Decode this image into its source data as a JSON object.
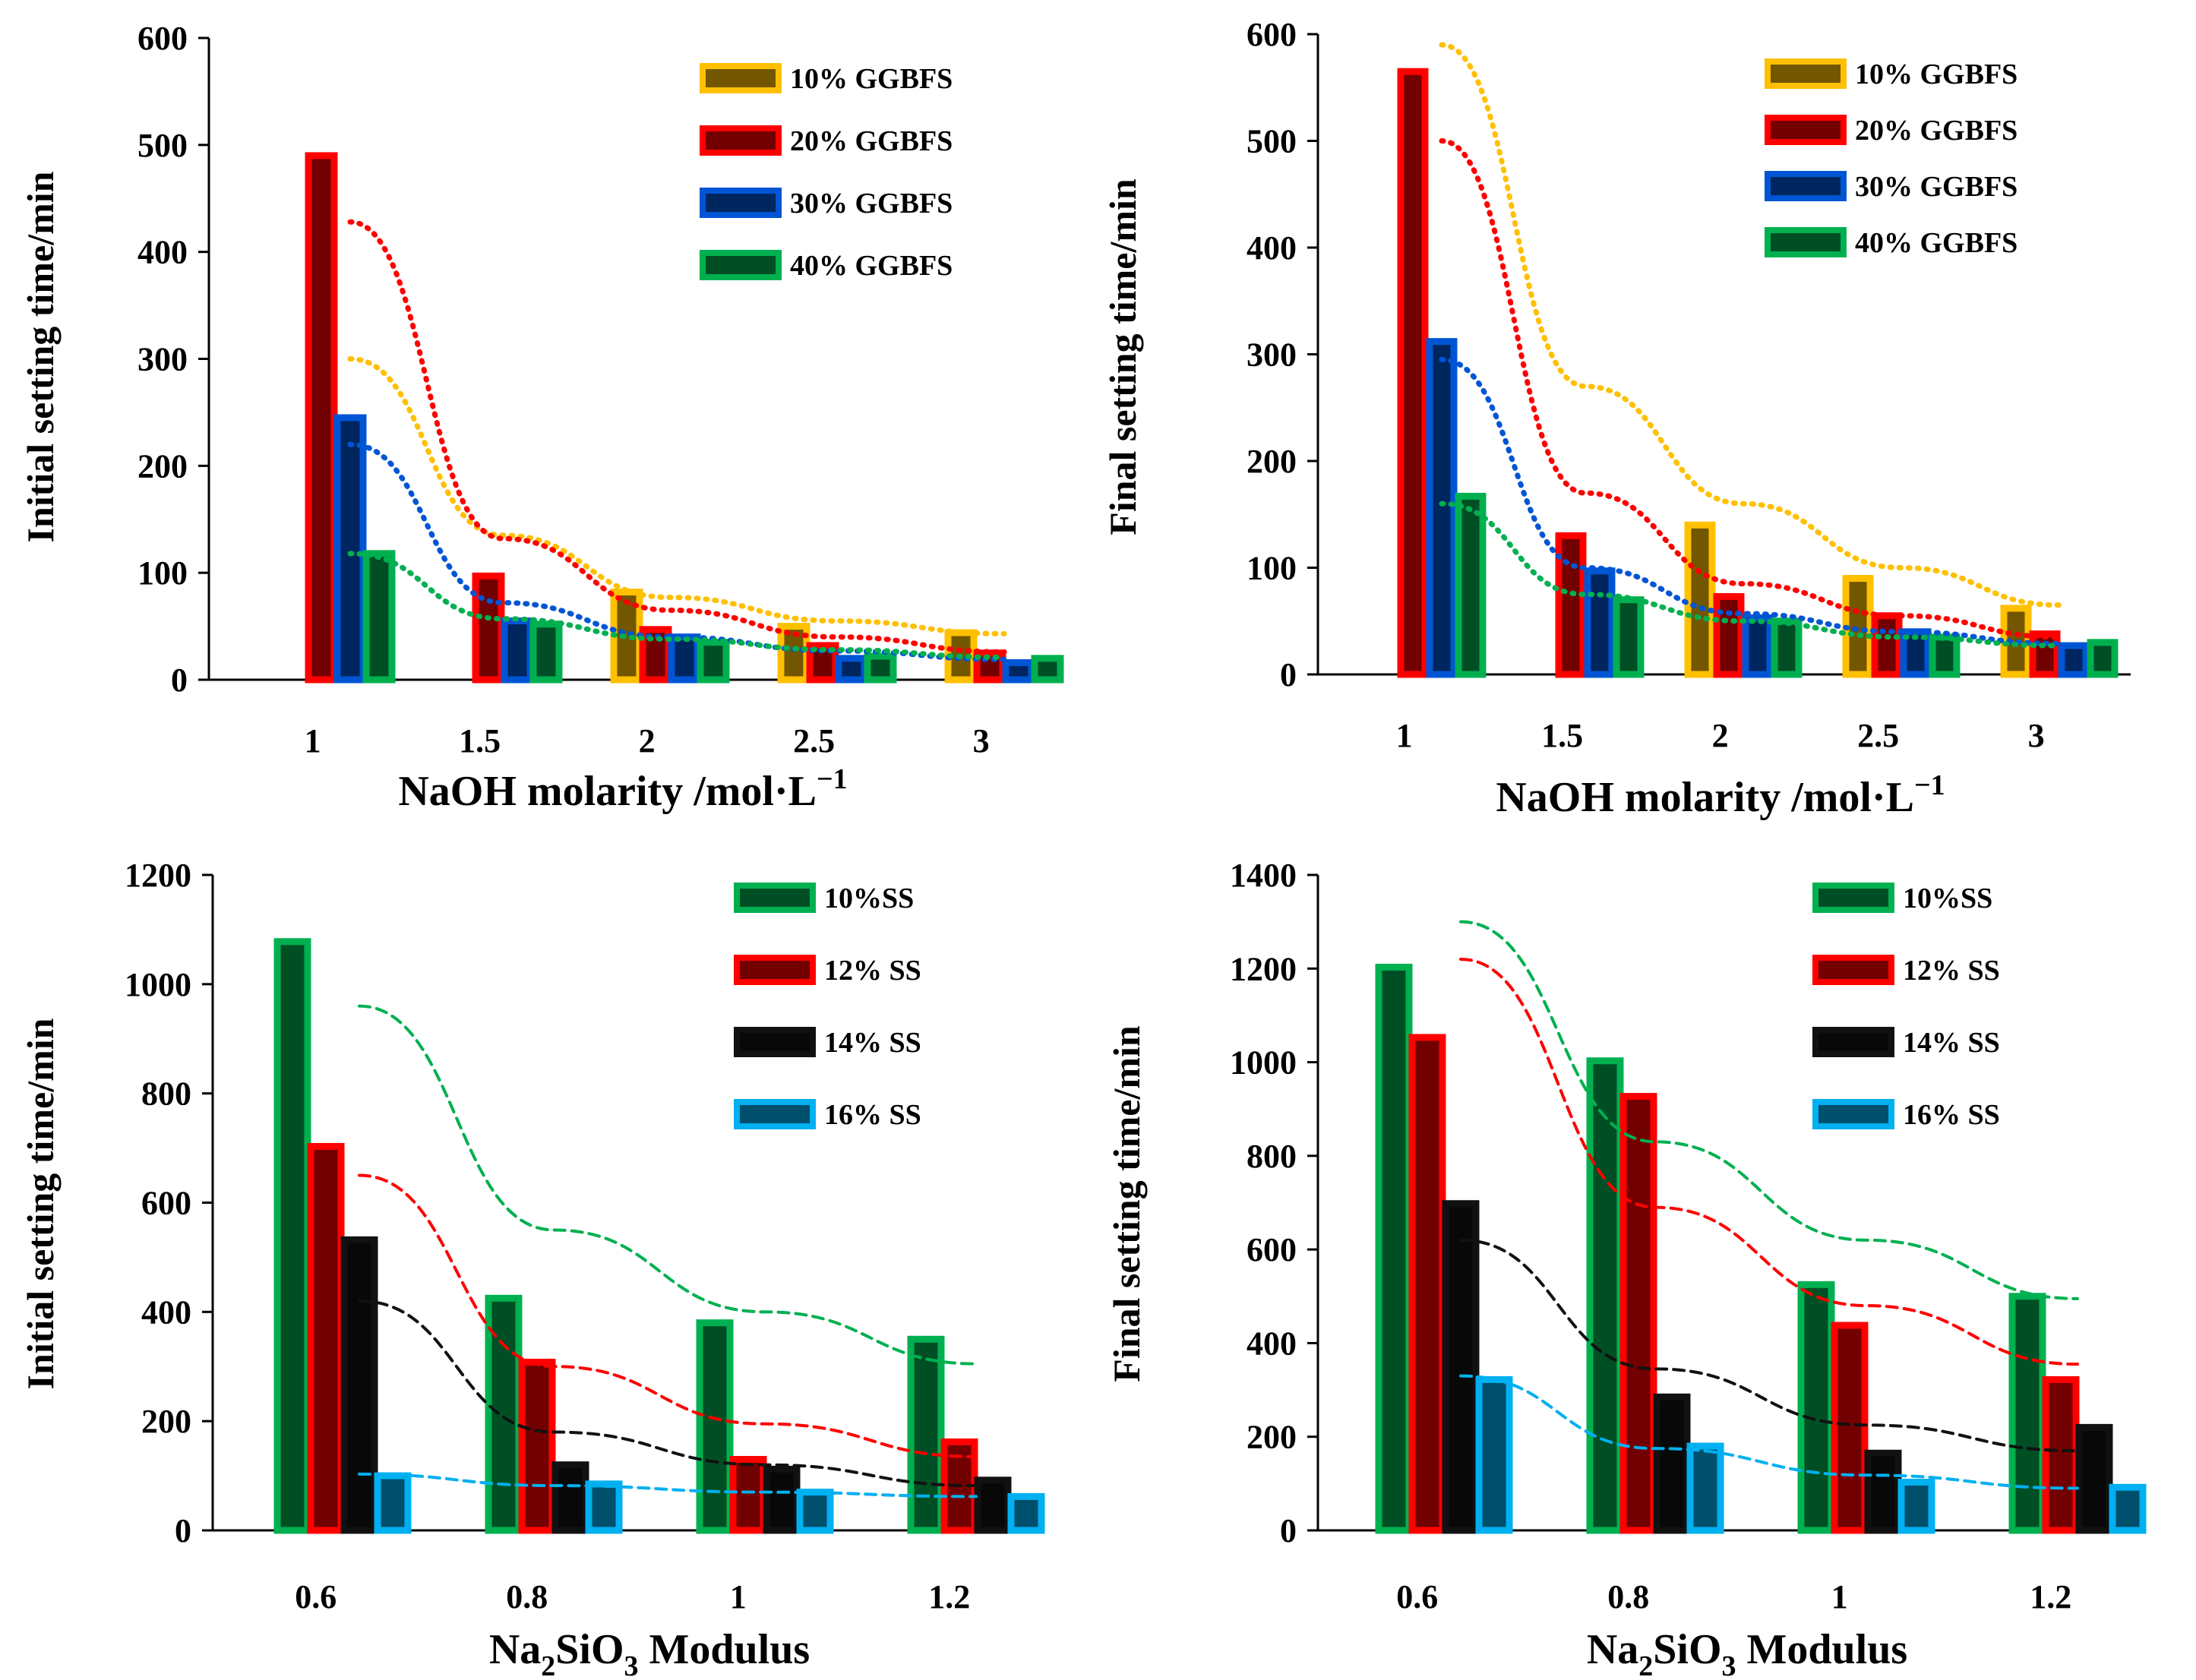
{
  "chart_data": [
    {
      "id": "a",
      "type": "bar",
      "ylabel": "Initial setting time/min",
      "xlabel_main": "NaOH molarity /mol·L",
      "xlabel_sup": "−1",
      "ylim": [
        0,
        600
      ],
      "yticks": [
        0,
        100,
        200,
        300,
        400,
        500,
        600
      ],
      "categories": [
        "1",
        "1.5",
        "2",
        "2.5",
        "3"
      ],
      "series": [
        {
          "name": "10% GGBFS",
          "color": "#FFC000",
          "values": [
            0,
            0,
            82,
            50,
            44
          ],
          "trend": [
            300,
            135,
            77,
            55,
            43
          ]
        },
        {
          "name": "20% GGBFS",
          "color": "#FF0000",
          "values": [
            490,
            97,
            47,
            32,
            25
          ],
          "trend": [
            428,
            132,
            65,
            40,
            26
          ]
        },
        {
          "name": "30% GGBFS",
          "color": "#0055D4",
          "values": [
            245,
            55,
            40,
            20,
            16
          ],
          "trend": [
            220,
            72,
            40,
            27,
            19
          ]
        },
        {
          "name": "40% GGBFS",
          "color": "#00B050",
          "values": [
            118,
            52,
            35,
            22,
            20
          ],
          "trend": [
            118,
            57,
            38,
            28,
            21
          ]
        }
      ]
    },
    {
      "id": "b",
      "type": "bar",
      "ylabel": "Final setting time/min",
      "xlabel_main": "NaOH molarity /mol·L",
      "xlabel_sup": "−1",
      "ylim": [
        0,
        600
      ],
      "yticks": [
        0,
        100,
        200,
        300,
        400,
        500,
        600
      ],
      "categories": [
        "1",
        "1.5",
        "2",
        "2.5",
        "3"
      ],
      "series": [
        {
          "name": "10% GGBFS",
          "color": "#FFC000",
          "values": [
            0,
            0,
            140,
            90,
            62
          ],
          "trend": [
            590,
            270,
            160,
            100,
            65
          ]
        },
        {
          "name": "20% GGBFS",
          "color": "#FF0000",
          "values": [
            565,
            130,
            73,
            55,
            38
          ],
          "trend": [
            500,
            170,
            85,
            55,
            35
          ]
        },
        {
          "name": "30% GGBFS",
          "color": "#0055D4",
          "values": [
            312,
            97,
            53,
            40,
            27
          ],
          "trend": [
            295,
            100,
            57,
            40,
            29
          ]
        },
        {
          "name": "40% GGBFS",
          "color": "#00B050",
          "values": [
            167,
            70,
            50,
            35,
            30
          ],
          "trend": [
            160,
            75,
            50,
            35,
            27
          ]
        }
      ]
    },
    {
      "id": "c",
      "type": "bar",
      "ylabel": "Initial setting time/min",
      "xlabel_main": "Na",
      "xlabel_sub": "2",
      "xlabel_mid": "SiO",
      "xlabel_sub2": "3",
      "xlabel_end": "  Modulus",
      "ylim": [
        0,
        1200
      ],
      "yticks": [
        0,
        200,
        400,
        600,
        800,
        1000,
        1200
      ],
      "categories": [
        "0.6",
        "0.8",
        "1",
        "1.2"
      ],
      "series": [
        {
          "name": "10%SS",
          "color": "#00B050",
          "values": [
            1078,
            425,
            380,
            350
          ],
          "trend": [
            960,
            550,
            400,
            305
          ]
        },
        {
          "name": "12% SS",
          "color": "#FF0000",
          "values": [
            703,
            308,
            130,
            162
          ],
          "trend": [
            650,
            300,
            195,
            135
          ]
        },
        {
          "name": "14% SS",
          "color": "#111111",
          "values": [
            532,
            120,
            112,
            92
          ],
          "trend": [
            420,
            180,
            120,
            82
          ]
        },
        {
          "name": "16% SS",
          "color": "#00B0F0",
          "values": [
            100,
            85,
            70,
            62
          ],
          "trend": [
            103,
            82,
            70,
            62
          ]
        }
      ]
    },
    {
      "id": "d",
      "type": "bar",
      "ylabel": "Final setting time/min",
      "xlabel_main": "Na",
      "xlabel_sub": "2",
      "xlabel_mid": "SiO",
      "xlabel_sub2": "3",
      "xlabel_end": "  Modulus",
      "ylim": [
        0,
        1400
      ],
      "yticks": [
        0,
        200,
        400,
        600,
        800,
        1000,
        1200,
        1400
      ],
      "categories": [
        "0.6",
        "0.8",
        "1",
        "1.2"
      ],
      "series": [
        {
          "name": "10%SS",
          "color": "#00B050",
          "values": [
            1203,
            1003,
            525,
            500
          ],
          "trend": [
            1300,
            830,
            620,
            495
          ]
        },
        {
          "name": "12% SS",
          "color": "#FF0000",
          "values": [
            1053,
            927,
            438,
            322
          ],
          "trend": [
            1220,
            690,
            480,
            355
          ]
        },
        {
          "name": "14% SS",
          "color": "#111111",
          "values": [
            698,
            285,
            165,
            220
          ],
          "trend": [
            620,
            345,
            225,
            170
          ]
        },
        {
          "name": "16% SS",
          "color": "#00B0F0",
          "values": [
            322,
            180,
            103,
            92
          ],
          "trend": [
            330,
            175,
            118,
            90
          ]
        }
      ]
    }
  ]
}
